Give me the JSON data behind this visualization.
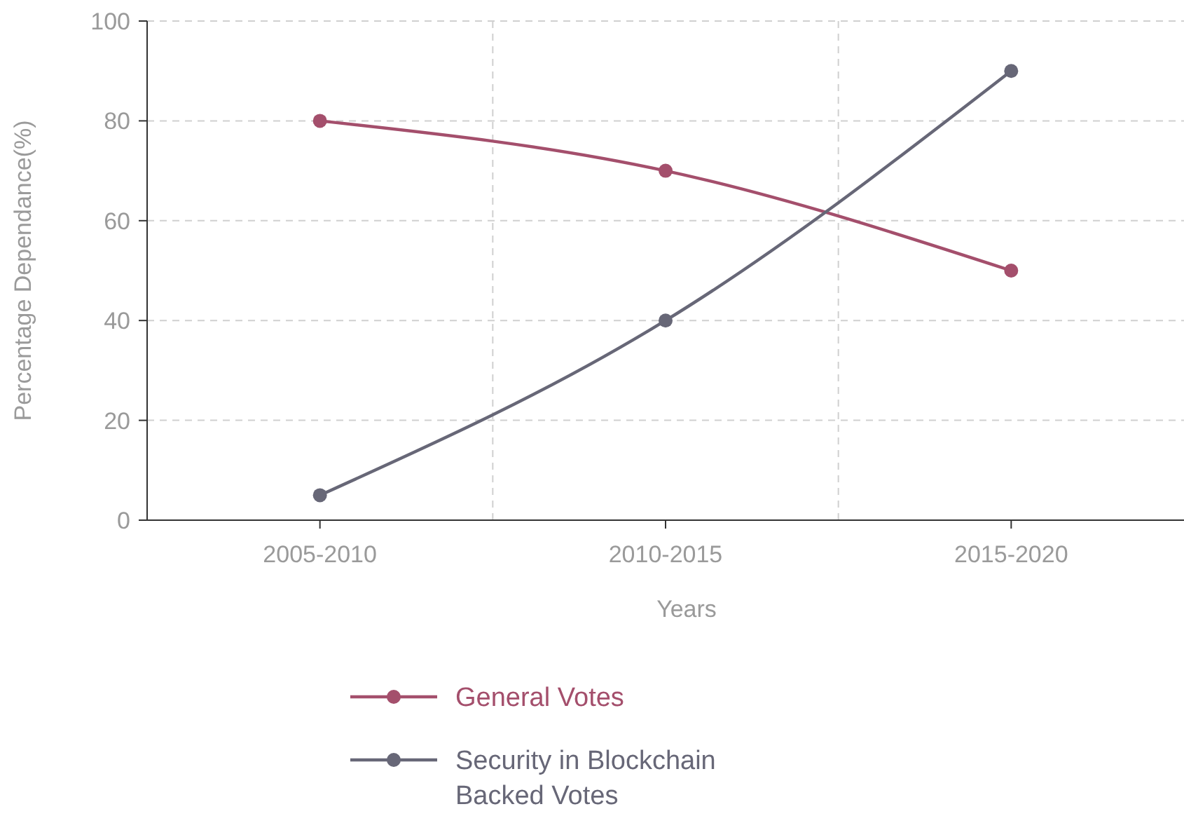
{
  "chart_data": {
    "type": "line",
    "xlabel": "Years",
    "ylabel": "Percentage Dependance(%)",
    "categories": [
      "2005-2010",
      "2010-2015",
      "2015-2020"
    ],
    "series": [
      {
        "name": "General Votes",
        "color": "#a44f6c",
        "values": [
          80,
          70,
          50
        ]
      },
      {
        "name": "Security in Blockchain Backed Votes",
        "color": "#676777",
        "values": [
          5,
          40,
          90
        ]
      }
    ],
    "ylim": [
      0,
      100
    ],
    "yticks": [
      0,
      20,
      40,
      60,
      80,
      100
    ],
    "grid": true,
    "legend": "bottom",
    "marker": "circle",
    "line_style": "solid"
  }
}
